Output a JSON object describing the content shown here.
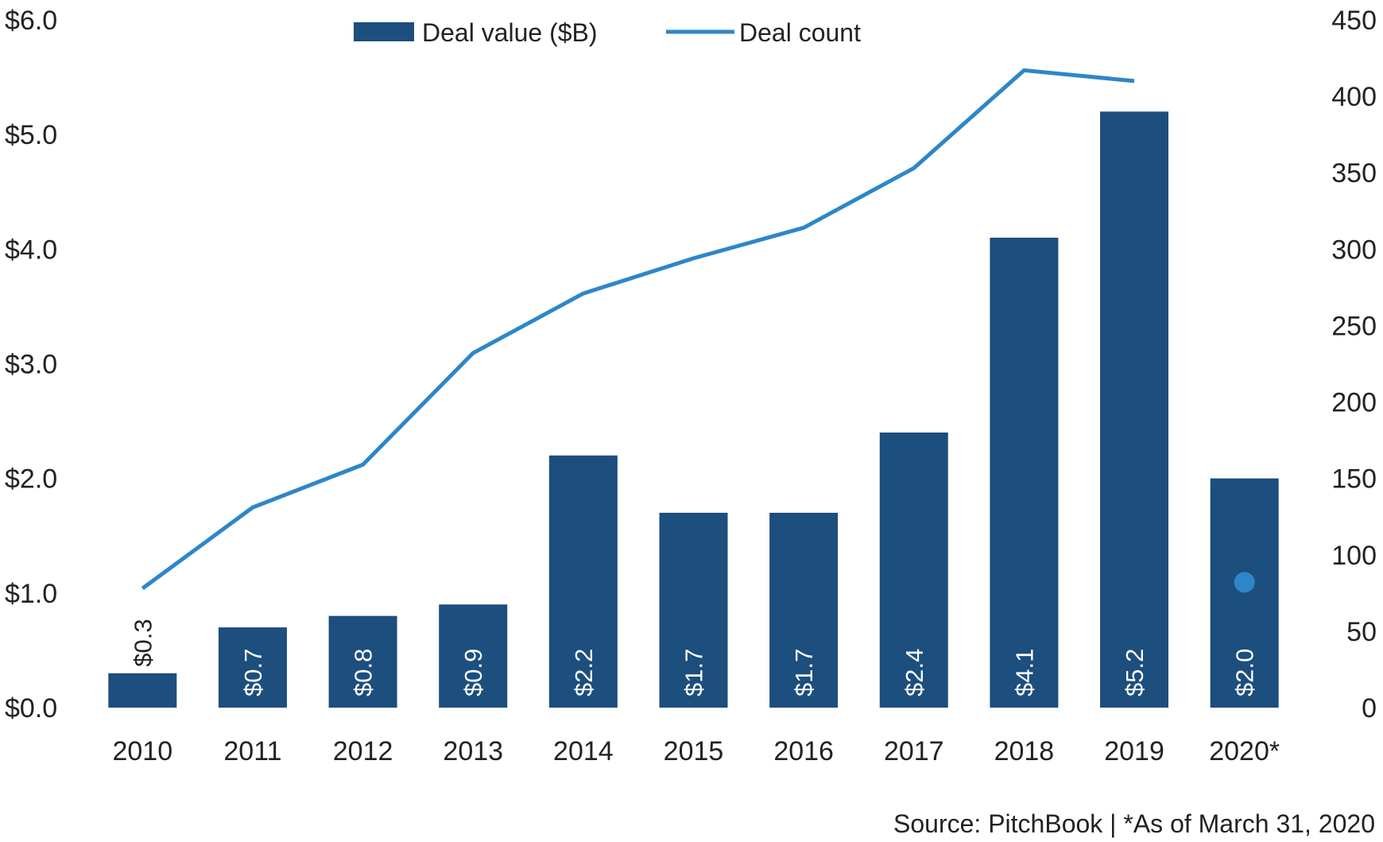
{
  "chart_data": {
    "type": "bar",
    "categories": [
      "2010",
      "2011",
      "2012",
      "2013",
      "2014",
      "2015",
      "2016",
      "2017",
      "2018",
      "2019",
      "2020*"
    ],
    "series": [
      {
        "name": "Deal value ($B)",
        "type": "bar",
        "axis": "left",
        "values": [
          0.3,
          0.7,
          0.8,
          0.9,
          2.2,
          1.7,
          1.7,
          2.4,
          4.1,
          5.2,
          2.0
        ],
        "data_labels": [
          "$0.3",
          "$0.7",
          "$0.8",
          "$0.9",
          "$2.2",
          "$1.7",
          "$1.7",
          "$2.4",
          "$4.1",
          "$5.2",
          "$2.0"
        ]
      },
      {
        "name": "Deal count",
        "type": "line",
        "axis": "right",
        "values": [
          78,
          131,
          159,
          232,
          271,
          294,
          314,
          353,
          417,
          410,
          82
        ]
      }
    ],
    "y_left": {
      "ylim": [
        0,
        6
      ],
      "ticks": [
        0,
        1,
        2,
        3,
        4,
        5,
        6
      ],
      "tick_labels": [
        "$0.0",
        "$1.0",
        "$2.0",
        "$3.0",
        "$4.0",
        "$5.0",
        "$6.0"
      ]
    },
    "y_right": {
      "ylim": [
        0,
        450
      ],
      "ticks": [
        0,
        50,
        100,
        150,
        200,
        250,
        300,
        350,
        400,
        450
      ],
      "tick_labels": [
        "0",
        "50",
        "100",
        "150",
        "200",
        "250",
        "300",
        "350",
        "400",
        "450"
      ]
    },
    "legend": {
      "position": "top-center"
    },
    "grid": false,
    "colors": {
      "bar": "#1c4e7e",
      "line": "#2e86c8",
      "label_inside": "#ffffff",
      "label_outside": "#222222"
    },
    "source_note": "Source: PitchBook | *As of March 31, 2020"
  }
}
